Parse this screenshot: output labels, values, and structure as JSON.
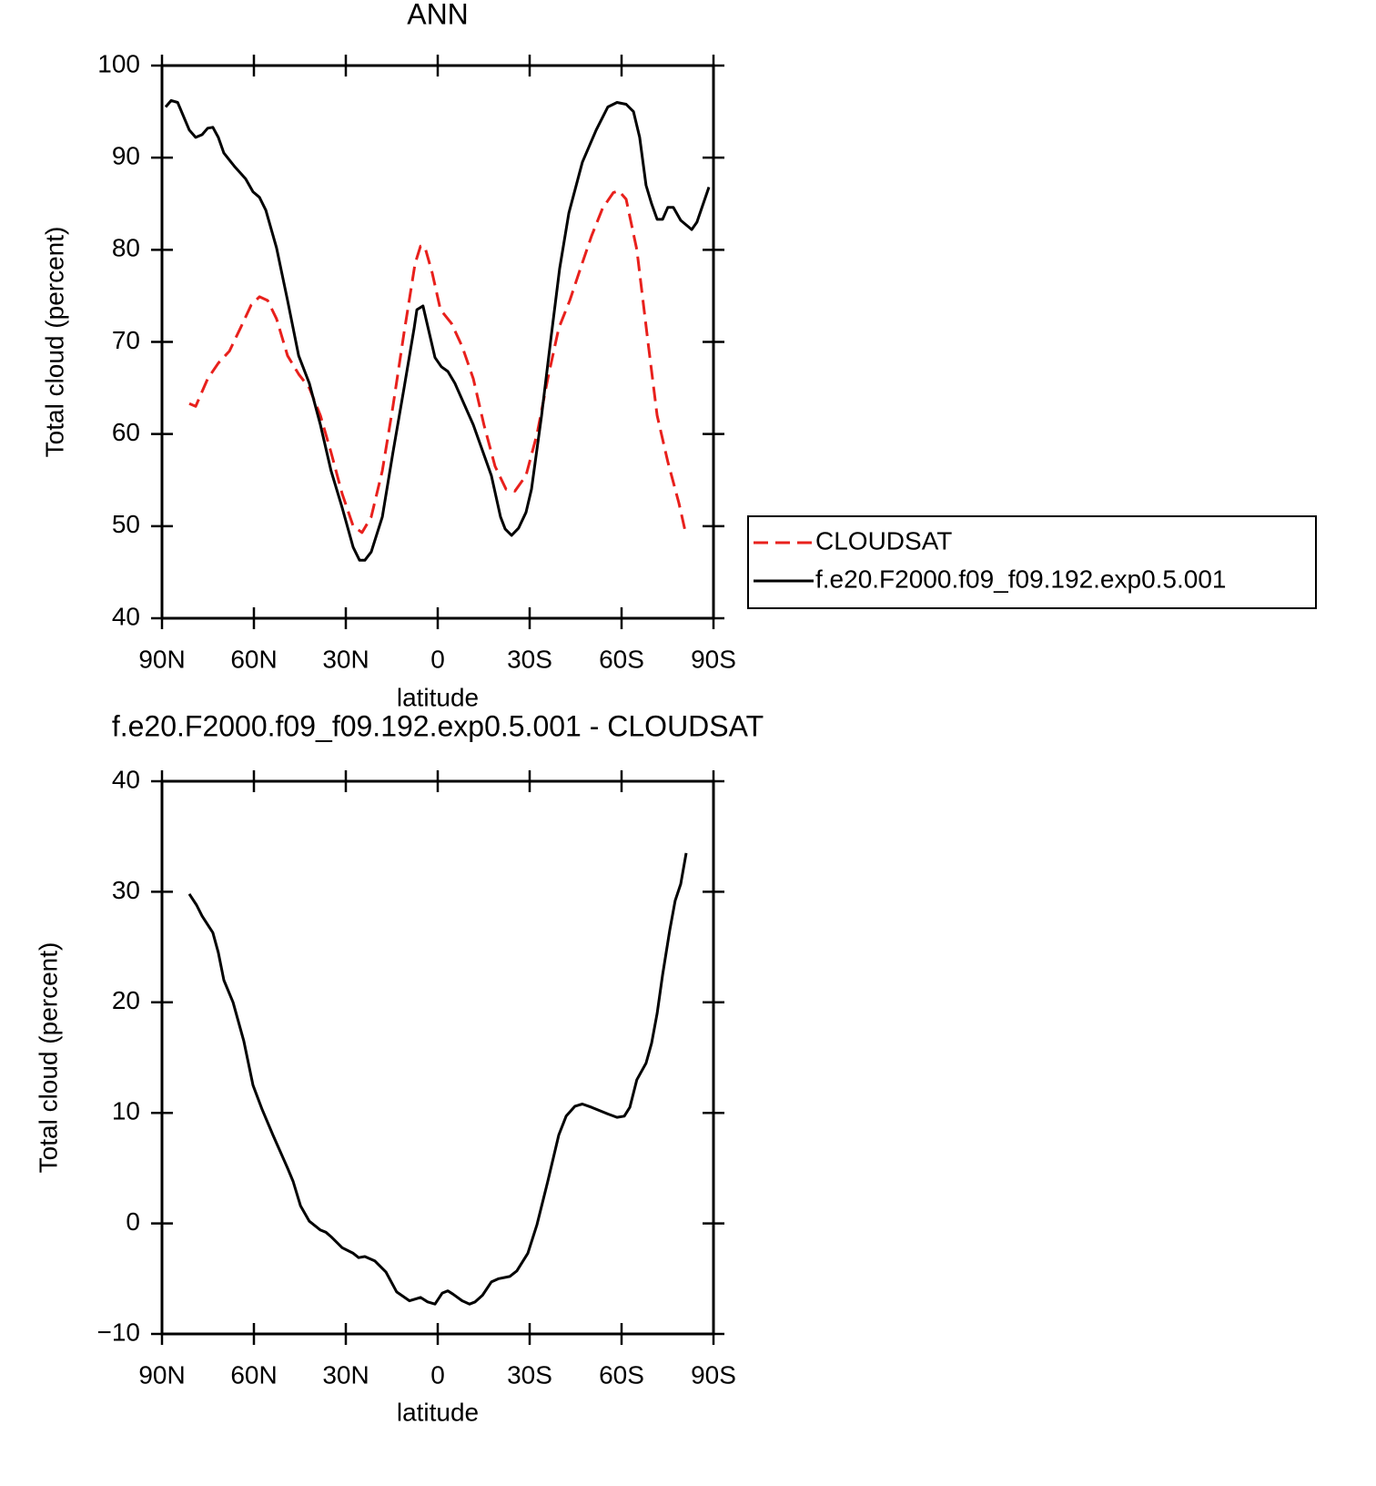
{
  "chart_data": [
    {
      "type": "line",
      "title": "ANN",
      "xlabel": "latitude",
      "ylabel": "Total cloud (percent)",
      "xlim": [
        90,
        -90
      ],
      "xticks": [
        {
          "value": 90,
          "label": "90N"
        },
        {
          "value": 60,
          "label": "60N"
        },
        {
          "value": 30,
          "label": "30N"
        },
        0,
        {
          "value": -30,
          "label": "30S"
        },
        {
          "value": -60,
          "label": "60S"
        },
        {
          "value": -90,
          "label": "90S"
        }
      ],
      "ylim": [
        40,
        100
      ],
      "yticks": [
        40,
        50,
        60,
        70,
        80,
        90,
        100
      ],
      "legend": "outside-right",
      "series": [
        {
          "name": "CLOUDSAT",
          "color": "#e8201c",
          "linestyle": "dashed",
          "x": [
            81.1,
            79.0,
            75.1,
            71.6,
            68.0,
            64.4,
            60.9,
            58.2,
            55.5,
            52.6,
            49.0,
            45.4,
            41.9,
            38.3,
            34.8,
            31.2,
            27.6,
            24.7,
            21.7,
            18.1,
            14.6,
            11.0,
            7.4,
            5.6,
            4.2,
            1.8,
            -0.9,
            -4.5,
            -8.0,
            -11.6,
            -15.1,
            -18.7,
            -22.3,
            -25.2,
            -28.8,
            -32.4,
            -35.9,
            -39.5,
            -43.1,
            -46.6,
            -50.2,
            -53.8,
            -57.3,
            -59.1,
            -61.5,
            -65.0,
            -68.6,
            -71.6,
            -75.1,
            -78.7,
            -81.1
          ],
          "values": [
            63.3,
            63.0,
            66.0,
            67.7,
            69.0,
            71.5,
            74.0,
            74.9,
            74.5,
            72.5,
            68.5,
            66.5,
            65.0,
            62.0,
            58.0,
            53.5,
            50.0,
            49.3,
            51.0,
            56.0,
            63.0,
            71.0,
            78.5,
            80.4,
            80.3,
            77.5,
            73.5,
            72.0,
            69.5,
            66.0,
            61.0,
            56.5,
            54.0,
            53.8,
            55.5,
            60.0,
            66.0,
            71.5,
            74.5,
            78.0,
            81.5,
            84.5,
            86.2,
            86.4,
            85.5,
            80.0,
            70.0,
            62.0,
            57.0,
            52.5,
            49.0
          ]
        },
        {
          "name": "f.e20.F2000.f09_f09.192.exp0.5.001",
          "color": "#000000",
          "linestyle": "solid",
          "x": [
            88.8,
            87.0,
            84.9,
            81.1,
            79.0,
            76.9,
            75.1,
            73.4,
            71.6,
            69.8,
            66.2,
            62.7,
            60.3,
            58.2,
            56.1,
            52.6,
            49.0,
            45.4,
            41.9,
            38.3,
            34.8,
            31.2,
            27.6,
            25.5,
            23.8,
            21.7,
            18.1,
            14.6,
            11.0,
            7.7,
            6.8,
            4.8,
            0.9,
            -1.2,
            -3.3,
            -5.6,
            -11.6,
            -17.5,
            -20.5,
            -22.0,
            -24.1,
            -26.4,
            -28.8,
            -30.6,
            -33.9,
            -36.8,
            -39.8,
            -42.8,
            -47.2,
            -51.7,
            -55.5,
            -58.5,
            -61.5,
            -63.9,
            -65.9,
            -68.0,
            -69.8,
            -71.6,
            -73.4,
            -75.1,
            -76.9,
            -79.3,
            -82.9,
            -84.6,
            -88.5
          ],
          "values": [
            95.5,
            96.2,
            96.0,
            93.0,
            92.2,
            92.5,
            93.2,
            93.3,
            92.2,
            90.5,
            89.0,
            87.7,
            86.3,
            85.7,
            84.3,
            80.2,
            74.5,
            68.5,
            65.5,
            61.0,
            56.0,
            52.0,
            47.7,
            46.3,
            46.3,
            47.2,
            51.0,
            58.0,
            65.0,
            71.5,
            73.5,
            73.9,
            68.3,
            67.3,
            66.8,
            65.5,
            61.0,
            55.5,
            51.0,
            49.7,
            49.0,
            49.8,
            51.5,
            54.0,
            62.0,
            70.0,
            78.0,
            84.0,
            89.5,
            93.0,
            95.5,
            96.0,
            95.8,
            95.0,
            92.2,
            87.0,
            85.0,
            83.3,
            83.3,
            84.6,
            84.6,
            83.2,
            82.2,
            83.0,
            86.8
          ]
        }
      ]
    },
    {
      "type": "line",
      "title": "f.e20.F2000.f09_f09.192.exp0.5.001 - CLOUDSAT",
      "xlabel": "latitude",
      "ylabel": "Total cloud (percent)",
      "xlim": [
        90,
        -90
      ],
      "xticks": [
        {
          "value": 90,
          "label": "90N"
        },
        {
          "value": 60,
          "label": "60N"
        },
        {
          "value": 30,
          "label": "30N"
        },
        0,
        {
          "value": -30,
          "label": "30S"
        },
        {
          "value": -60,
          "label": "60S"
        },
        {
          "value": -90,
          "label": "90S"
        }
      ],
      "ylim": [
        -10,
        40
      ],
      "yticks": [
        {
          "value": -10,
          "label": "−10"
        },
        0,
        10,
        20,
        30,
        40
      ],
      "series": [
        {
          "color": "#000000",
          "linestyle": "solid",
          "x": [
            81.1,
            78.7,
            76.9,
            73.4,
            71.6,
            69.8,
            66.8,
            63.3,
            60.3,
            57.3,
            53.8,
            49.0,
            47.2,
            44.8,
            41.9,
            38.3,
            36.5,
            34.8,
            31.2,
            27.6,
            25.8,
            23.8,
            20.5,
            16.9,
            13.4,
            9.2,
            5.6,
            3.3,
            0.9,
            -1.5,
            -3.3,
            -5.0,
            -8.0,
            -10.4,
            -12.2,
            -14.6,
            -17.5,
            -19.9,
            -23.5,
            -25.8,
            -29.4,
            -32.4,
            -35.9,
            -39.5,
            -41.9,
            -44.8,
            -47.2,
            -50.2,
            -55.5,
            -58.5,
            -60.9,
            -62.7,
            -65.0,
            -68.0,
            -69.8,
            -71.6,
            -73.4,
            -75.7,
            -77.5,
            -79.3,
            -81.1
          ],
          "values": [
            29.8,
            28.8,
            27.8,
            26.3,
            24.5,
            22.0,
            20.0,
            16.5,
            12.5,
            10.3,
            8.0,
            5.0,
            3.8,
            1.6,
            0.2,
            -0.6,
            -0.8,
            -1.2,
            -2.2,
            -2.7,
            -3.1,
            -3.0,
            -3.4,
            -4.4,
            -6.2,
            -7.0,
            -6.7,
            -7.1,
            -7.3,
            -6.3,
            -6.1,
            -6.4,
            -7.0,
            -7.3,
            -7.1,
            -6.5,
            -5.3,
            -5.0,
            -4.8,
            -4.3,
            -2.7,
            -0.1,
            3.8,
            8.0,
            9.7,
            10.6,
            10.8,
            10.5,
            9.9,
            9.6,
            9.7,
            10.5,
            13.0,
            14.5,
            16.3,
            19.0,
            22.5,
            26.5,
            29.2,
            30.7,
            33.5
          ]
        }
      ]
    }
  ]
}
